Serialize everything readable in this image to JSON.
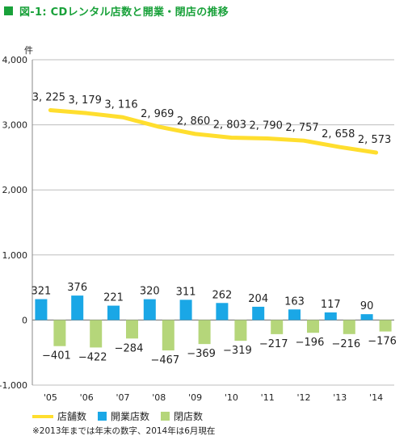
{
  "title": "図-1: CDレンタル店数と開業・閉店の推移",
  "note": "※2013年までは年末の数字、2014年は6月現在",
  "colors": {
    "title": "#19a13a",
    "line": "#ffde2e",
    "open": "#1aa7e6",
    "close": "#b5d67a",
    "grid": "#bdbdbd"
  },
  "legend": [
    {
      "label": "店舗数",
      "color": "#ffde2e",
      "kind": "line"
    },
    {
      "label": "開業店数",
      "color": "#1aa7e6",
      "kind": "box"
    },
    {
      "label": "閉店数",
      "color": "#b5d67a",
      "kind": "box"
    }
  ],
  "chart_data": {
    "type": "bar",
    "ylabel": "件",
    "ylim": [
      -1000,
      4000
    ],
    "yticks": [
      4000,
      3000,
      2000,
      1000,
      0,
      -1000
    ],
    "ytick_labels": [
      "4,000",
      "3,000",
      "2,000",
      "1,000",
      "0",
      "-1,000"
    ],
    "categories": [
      "'05",
      "'06",
      "'07",
      "'08",
      "'09",
      "'10",
      "'11",
      "'12",
      "'13",
      "'14"
    ],
    "series": [
      {
        "name": "店舗数",
        "type": "line",
        "values": [
          3225,
          3179,
          3116,
          2969,
          2860,
          2803,
          2790,
          2757,
          2658,
          2573
        ],
        "labels": [
          "3, 225",
          "3, 179",
          "3, 116",
          "2, 969",
          "2, 860",
          "2, 803",
          "2, 790",
          "2, 757",
          "2, 658",
          "2, 573"
        ]
      },
      {
        "name": "開業店数",
        "type": "bar",
        "values": [
          321,
          376,
          221,
          320,
          311,
          262,
          204,
          163,
          117,
          90
        ],
        "labels": [
          "321",
          "376",
          "221",
          "320",
          "311",
          "262",
          "204",
          "163",
          "117",
          "90"
        ]
      },
      {
        "name": "閉店数",
        "type": "bar",
        "values": [
          -401,
          -422,
          -284,
          -467,
          -369,
          -319,
          -217,
          -196,
          -216,
          -176
        ],
        "labels": [
          "−401",
          "−422",
          "−284",
          "−467",
          "−369",
          "−319",
          "−217",
          "−196",
          "−216",
          "−176"
        ]
      }
    ]
  }
}
